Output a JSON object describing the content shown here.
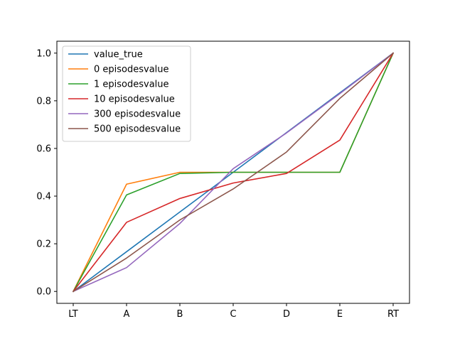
{
  "chart_data": {
    "type": "line",
    "title": "",
    "xlabel": "",
    "ylabel": "",
    "categories": [
      "LT",
      "A",
      "B",
      "C",
      "D",
      "E",
      "RT"
    ],
    "ylim": [
      -0.05,
      1.05
    ],
    "yticks": [
      0.0,
      0.2,
      0.4,
      0.6,
      0.8,
      1.0
    ],
    "ytick_labels": [
      "0.0",
      "0.2",
      "0.4",
      "0.6",
      "0.8",
      "1.0"
    ],
    "legend_position": "top-left",
    "grid": false,
    "series": [
      {
        "name": "value_true",
        "color": "#1f77b4",
        "values": [
          0.0,
          0.1667,
          0.3333,
          0.5,
          0.6667,
          0.8333,
          1.0
        ]
      },
      {
        "name": "0 episodesvalue",
        "color": "#ff7f0e",
        "values": [
          0.0,
          0.45,
          0.5,
          0.5,
          0.5,
          0.5,
          1.0
        ]
      },
      {
        "name": "1 episodesvalue",
        "color": "#2ca02c",
        "values": [
          0.0,
          0.405,
          0.495,
          0.5,
          0.5,
          0.5,
          1.0
        ]
      },
      {
        "name": "10 episodesvalue",
        "color": "#d62728",
        "values": [
          0.0,
          0.29,
          0.39,
          0.455,
          0.495,
          0.635,
          1.0
        ]
      },
      {
        "name": "300 episodesvalue",
        "color": "#9467bd",
        "values": [
          0.0,
          0.1,
          0.285,
          0.515,
          0.665,
          0.83,
          1.0
        ]
      },
      {
        "name": "500 episodesvalue",
        "color": "#8c564b",
        "values": [
          0.0,
          0.14,
          0.3,
          0.43,
          0.585,
          0.81,
          1.0
        ]
      }
    ]
  }
}
